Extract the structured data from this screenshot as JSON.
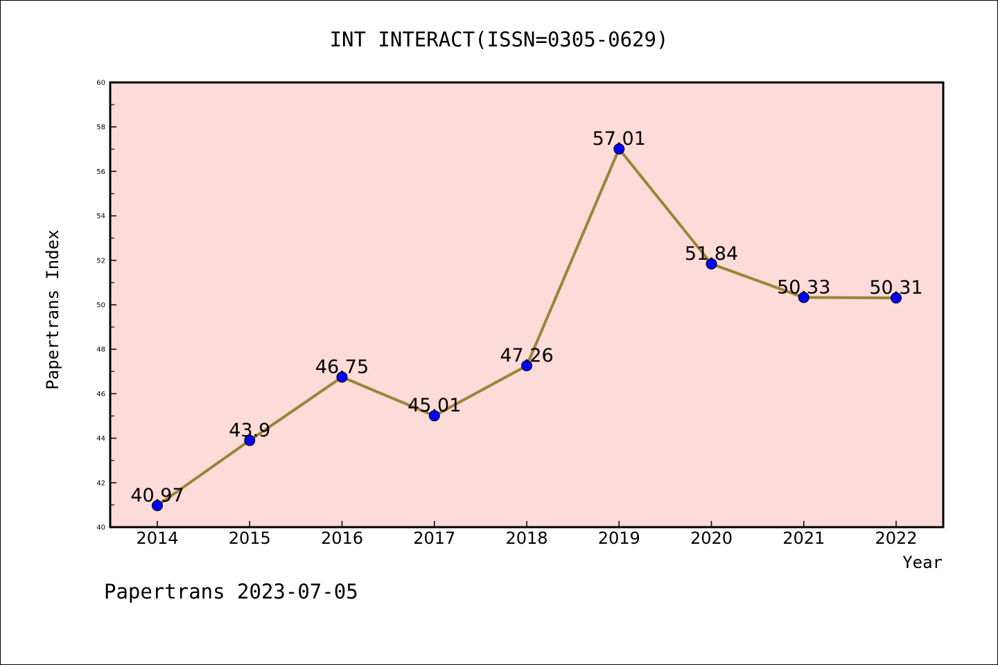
{
  "chart_data": {
    "type": "line",
    "title": "INT INTERACT(ISSN=0305-0629)",
    "xlabel": "Year",
    "ylabel": "Papertrans Index",
    "footer": "Papertrans 2023-07-05",
    "categories": [
      "2014",
      "2015",
      "2016",
      "2017",
      "2018",
      "2019",
      "2020",
      "2021",
      "2022"
    ],
    "values": [
      40.97,
      43.9,
      46.75,
      45.01,
      47.26,
      57.01,
      51.84,
      50.33,
      50.31
    ],
    "data_labels": [
      "40.97",
      "43.9",
      "46.75",
      "45.01",
      "47.26",
      "57.01",
      "51.84",
      "50.33",
      "50.31"
    ],
    "ylim": [
      40,
      60
    ],
    "yticks": [
      "40",
      "42",
      "44",
      "46",
      "48",
      "50",
      "52",
      "54",
      "56",
      "58",
      "60"
    ],
    "grid": false,
    "colors": {
      "plot_background": "#fddbd8",
      "line": "#9a8438",
      "marker": "#0000ff"
    }
  }
}
